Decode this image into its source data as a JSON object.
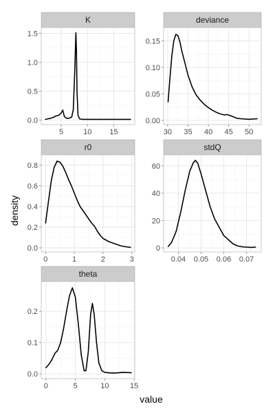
{
  "chart_data": {
    "type": "line",
    "xlabel": "value",
    "ylabel": "density",
    "grid": true,
    "facets": [
      {
        "label": "K",
        "xlim": [
          1.2,
          19.0
        ],
        "ylim": [
          -0.08,
          1.6
        ],
        "xticks": [
          5,
          10,
          15
        ],
        "yticks": [
          0.0,
          0.5,
          1.0,
          1.5
        ],
        "ytick_labels": [
          "0.0",
          "0.5",
          "1.0",
          "1.5"
        ],
        "x": [
          2.0,
          2.5,
          3.0,
          3.5,
          4.0,
          4.5,
          5.0,
          5.3,
          5.6,
          6.0,
          6.5,
          7.0,
          7.3,
          7.6,
          7.8,
          7.9,
          8.0,
          8.2,
          8.5,
          9.0,
          10.0,
          12.0,
          14.0,
          16.0,
          18.2
        ],
        "y": [
          0.01,
          0.02,
          0.03,
          0.045,
          0.07,
          0.08,
          0.12,
          0.17,
          0.06,
          0.03,
          0.03,
          0.05,
          0.18,
          0.9,
          1.51,
          1.2,
          0.5,
          0.08,
          0.02,
          0.01,
          0.01,
          0.01,
          0.01,
          0.01,
          0.01
        ]
      },
      {
        "label": "deviance",
        "xlim": [
          29.0,
          53.0
        ],
        "ylim": [
          -0.008,
          0.175
        ],
        "xticks": [
          30,
          35,
          40,
          45,
          50
        ],
        "yticks": [
          0.0,
          0.05,
          0.1,
          0.15
        ],
        "ytick_labels": [
          "0.00",
          "0.05",
          "0.10",
          "0.15"
        ],
        "x": [
          30.1,
          30.5,
          31.0,
          31.5,
          32.0,
          32.5,
          33.0,
          33.5,
          34.0,
          35.0,
          36.0,
          37.0,
          38.0,
          39.0,
          40.0,
          41.0,
          42.0,
          43.0,
          44.0,
          44.5,
          45.0,
          46.0,
          47.0,
          48.0,
          50.0,
          52.0
        ],
        "y": [
          0.035,
          0.075,
          0.12,
          0.15,
          0.162,
          0.16,
          0.148,
          0.13,
          0.115,
          0.085,
          0.063,
          0.048,
          0.038,
          0.03,
          0.024,
          0.019,
          0.015,
          0.012,
          0.01,
          0.011,
          0.01,
          0.007,
          0.004,
          0.003,
          0.002,
          0.003
        ]
      },
      {
        "label": "r0",
        "xlim": [
          -0.15,
          3.1
        ],
        "ylim": [
          -0.04,
          0.9
        ],
        "xticks": [
          0,
          1,
          2,
          3
        ],
        "yticks": [
          0.0,
          0.2,
          0.4,
          0.6,
          0.8
        ],
        "ytick_labels": [
          "0.0",
          "0.2",
          "0.4",
          "0.6",
          "0.8"
        ],
        "x": [
          0.0,
          0.1,
          0.2,
          0.3,
          0.4,
          0.5,
          0.6,
          0.7,
          0.8,
          0.9,
          1.0,
          1.1,
          1.2,
          1.3,
          1.4,
          1.5,
          1.6,
          1.7,
          1.8,
          1.9,
          2.0,
          2.2,
          2.4,
          2.6,
          2.8,
          2.95
        ],
        "y": [
          0.24,
          0.45,
          0.65,
          0.78,
          0.84,
          0.83,
          0.79,
          0.73,
          0.66,
          0.6,
          0.53,
          0.46,
          0.4,
          0.36,
          0.32,
          0.28,
          0.24,
          0.21,
          0.16,
          0.12,
          0.09,
          0.06,
          0.04,
          0.02,
          0.01,
          0.005
        ]
      },
      {
        "label": "stdQ",
        "xlim": [
          0.0335,
          0.0765
        ],
        "ylim": [
          -3.0,
          68.0
        ],
        "xticks": [
          0.04,
          0.05,
          0.06,
          0.07
        ],
        "yticks": [
          0,
          20,
          40,
          60
        ],
        "ytick_labels": [
          "0",
          "20",
          "40",
          "60"
        ],
        "x": [
          0.0355,
          0.037,
          0.039,
          0.041,
          0.043,
          0.045,
          0.0465,
          0.0475,
          0.0485,
          0.05,
          0.052,
          0.054,
          0.056,
          0.058,
          0.06,
          0.062,
          0.064,
          0.066,
          0.068,
          0.07,
          0.072,
          0.074
        ],
        "y": [
          1,
          4,
          12,
          26,
          42,
          56,
          62,
          64,
          62,
          54,
          42,
          30,
          21,
          15,
          9,
          6,
          3,
          1.5,
          0.8,
          0.5,
          0.3,
          0.5
        ]
      },
      {
        "label": "theta",
        "xlim": [
          -0.8,
          15.1
        ],
        "ylim": [
          -0.015,
          0.295
        ],
        "xticks": [
          0,
          5,
          10,
          15
        ],
        "yticks": [
          0.0,
          0.1,
          0.2
        ],
        "ytick_labels": [
          "0.0",
          "0.1",
          "0.2"
        ],
        "x": [
          0.0,
          0.5,
          1.0,
          1.5,
          2.0,
          2.5,
          3.0,
          3.5,
          4.0,
          4.5,
          5.0,
          5.5,
          6.0,
          6.5,
          6.8,
          7.2,
          7.6,
          7.9,
          8.2,
          8.6,
          9.0,
          9.5,
          10.0,
          11.0,
          12.0,
          13.0,
          14.5
        ],
        "y": [
          0.02,
          0.03,
          0.045,
          0.065,
          0.075,
          0.1,
          0.145,
          0.2,
          0.25,
          0.275,
          0.245,
          0.16,
          0.06,
          0.01,
          0.01,
          0.07,
          0.19,
          0.225,
          0.19,
          0.1,
          0.035,
          0.01,
          0.005,
          0.003,
          0.003,
          0.005,
          0.004
        ]
      }
    ]
  }
}
